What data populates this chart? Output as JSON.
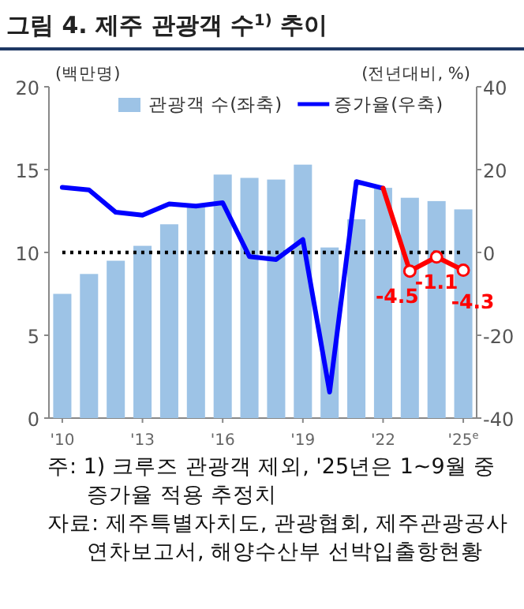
{
  "chart_data": {
    "type": "bar",
    "title": "그림 4. 제주  관광객 수$^{1)}$ 추이",
    "ylabel": "(백만명)",
    "y2label": "(전년대비, %)",
    "categories": [
      "'10",
      null,
      null,
      "'13",
      null,
      null,
      "'16",
      null,
      null,
      "'19",
      null,
      null,
      "'22",
      null,
      null,
      "'25$^{e}$"
    ],
    "series": [
      {
        "name": "관광객 수(좌축)",
        "color": "#9dc3e6",
        "values": [
          7.5,
          8.7,
          9.5,
          10.4,
          11.7,
          12.8,
          14.7,
          14.5,
          14.4,
          15.3,
          10.3,
          12.0,
          13.9,
          13.3,
          13.1,
          12.6
        ]
      },
      {
        "name": "증가율(우축)",
        "type": "line",
        "axis": "y2",
        "color": "#0000ff",
        "values": [
          15.7,
          15.1,
          9.7,
          9.0,
          11.7,
          11.2,
          12.0,
          -1.0,
          -1.7,
          3.1,
          -33.7,
          17.1,
          15.5,
          null,
          null,
          null
        ]
      },
      {
        "type": "line",
        "axis": "y2",
        "color": "#ff0000",
        "marker": "circle",
        "values": [
          null,
          null,
          null,
          null,
          null,
          null,
          null,
          null,
          null,
          null,
          null,
          null,
          15.5,
          -4.5,
          -1.1,
          -4.3
        ],
        "value_labels": [
          null,
          null,
          null,
          null,
          null,
          null,
          null,
          null,
          null,
          null,
          null,
          null,
          null,
          "-4.5",
          "-1.1",
          "-4.3"
        ]
      }
    ],
    "ylim": [
      0,
      20
    ],
    "yticks": [
      0,
      5,
      10,
      15,
      20
    ],
    "y2lim": [
      -40,
      40
    ],
    "y2ticks": [
      -40,
      -20,
      0,
      20,
      40
    ],
    "ref_lines": [
      {
        "axis": "y2",
        "value": 0,
        "color": "#000000",
        "line_style": "dotted"
      }
    ],
    "legend": "top",
    "annotations": [
      "주: 1) 크루즈 관광객 제외, '25년은 1~9월 중 증가율 적용 추정치",
      "자료: 제주특별자치도, 관광협회, 제주관광공사 연차보고서, 해양수산부 선박입출항현황"
    ]
  }
}
